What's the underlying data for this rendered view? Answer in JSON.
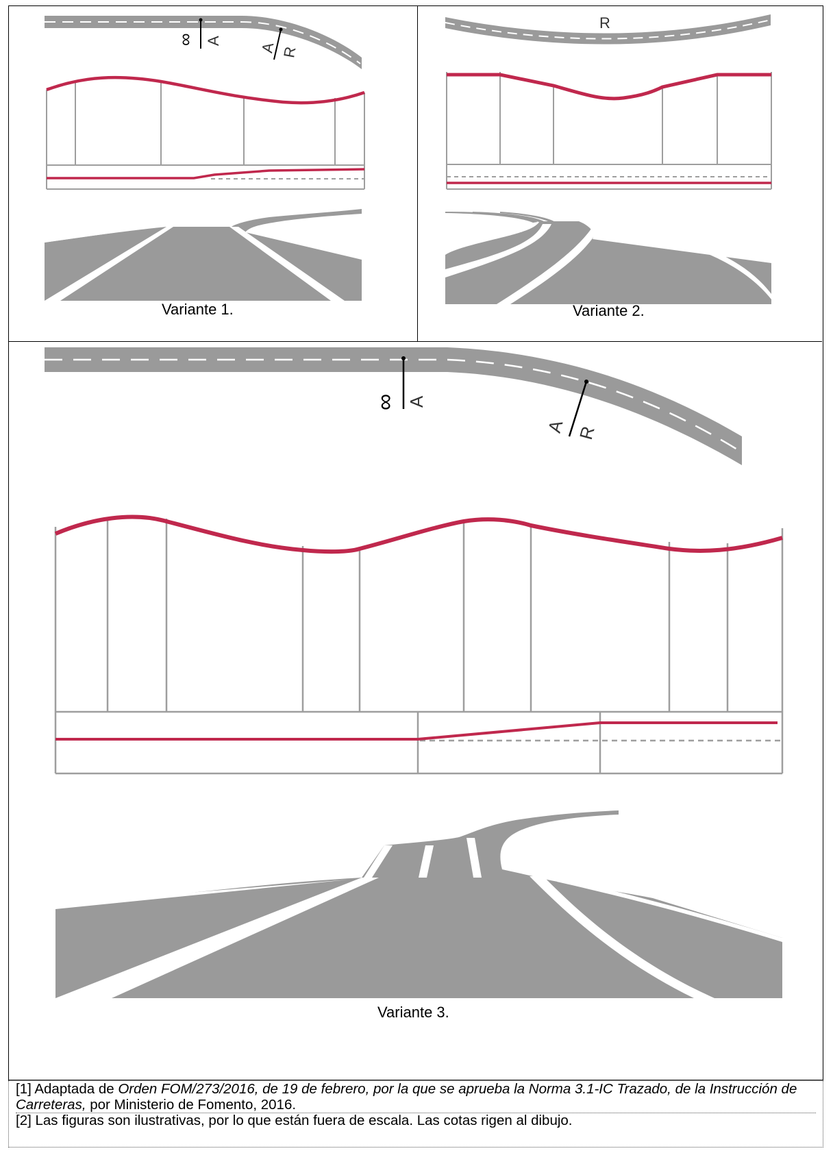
{
  "panels": [
    {
      "caption": "Variante 1."
    },
    {
      "caption": "Variante 2."
    },
    {
      "caption": "Variante 3."
    }
  ],
  "symbols": {
    "infinity": "∞",
    "a": "A",
    "r": "R"
  },
  "notes": {
    "n1_prefix": "[1] Adaptada de ",
    "n1_italic": "Orden FOM/273/2016, de 19 de febrero, por la que se aprueba la Norma 3.1-IC Trazado, de la Instrucción de Carreteras,",
    "n1_suffix": " por Ministerio de Fomento, 2016.",
    "n2": "[2] Las figuras son ilustrativas, por lo que están fuera de escala. Las cotas rigen al dibujo."
  },
  "colors": {
    "road": "#9a9a9a",
    "profile": "#c0284d",
    "grid": "#9e9e9e"
  }
}
